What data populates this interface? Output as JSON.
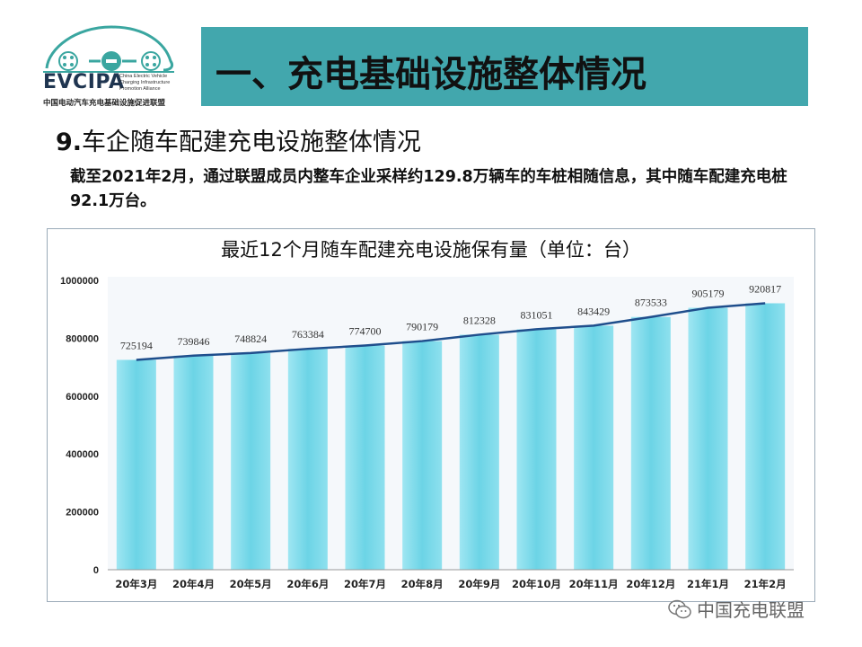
{
  "logo": {
    "brand": "EVCIPA",
    "description": "China Electric Vehicle Charging Infrastructure Promotion Alliance",
    "chinese_name": "中国电动汽车充电基础设施促进联盟"
  },
  "header": {
    "title": "一、充电基础设施整体情况"
  },
  "section": {
    "number": "9.",
    "title": "车企随车配建充电设施整体情况"
  },
  "description": "截至2021年2月，通过联盟成员内整车企业采样约129.8万辆车的车桩相随信息，其中随车配建充电桩92.1万台。",
  "watermark": "中国充电联盟",
  "colors": {
    "banner": "#42a7ad",
    "bar": "#6cd4e6",
    "line": "#1f4e8c"
  },
  "chart_data": {
    "type": "bar",
    "title": "最近12个月随车配建充电设施保有量（单位：台）",
    "categories": [
      "20年3月",
      "20年4月",
      "20年5月",
      "20年6月",
      "20年7月",
      "20年8月",
      "20年9月",
      "20年10月",
      "20年11月",
      "20年12月",
      "21年1月",
      "21年2月"
    ],
    "values": [
      725194,
      739846,
      748824,
      763384,
      774700,
      790179,
      812328,
      831051,
      843429,
      873533,
      905179,
      920817
    ],
    "data_labels": [
      "725194",
      "739846",
      "748824",
      "763384",
      "774700",
      "790179",
      "812328",
      "831051",
      "843429",
      "873533",
      "905179",
      "920817"
    ],
    "yticks": [
      "0",
      "200000",
      "400000",
      "600000",
      "800000",
      "1000000"
    ],
    "ylim": [
      0,
      1000000
    ],
    "trend_line": true,
    "grid": false
  }
}
